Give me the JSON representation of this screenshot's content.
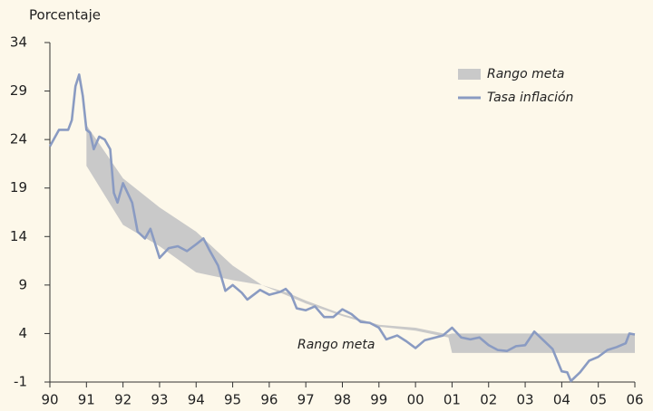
{
  "chart_data": {
    "type": "line",
    "y_label": "Porcentaje",
    "annotation": "Rango meta",
    "xlim": [
      1990,
      2006
    ],
    "xticks": [
      {
        "value": 1990,
        "label": "90"
      },
      {
        "value": 1991,
        "label": "91"
      },
      {
        "value": 1992,
        "label": "92"
      },
      {
        "value": 1993,
        "label": "93"
      },
      {
        "value": 1994,
        "label": "94"
      },
      {
        "value": 1995,
        "label": "95"
      },
      {
        "value": 1996,
        "label": "96"
      },
      {
        "value": 1997,
        "label": "97"
      },
      {
        "value": 1998,
        "label": "98"
      },
      {
        "value": 1999,
        "label": "99"
      },
      {
        "value": 2000,
        "label": "00"
      },
      {
        "value": 2001,
        "label": "01"
      },
      {
        "value": 2002,
        "label": "02"
      },
      {
        "value": 2003,
        "label": "03"
      },
      {
        "value": 2004,
        "label": "04"
      },
      {
        "value": 2005,
        "label": "05"
      },
      {
        "value": 2006,
        "label": "06"
      }
    ],
    "ylim": [
      -1,
      34
    ],
    "yticks": [
      -1,
      4,
      9,
      14,
      19,
      24,
      29,
      34
    ],
    "legend": "top-right",
    "series": [
      {
        "name": "Rango meta",
        "kind": "band",
        "color": "#c9c9c9",
        "x": [
          1991.0,
          1992.0,
          1993.0,
          1994.0,
          1995.0,
          1995.8,
          1996.5,
          1997.0,
          1998.0,
          1999.0,
          2000.0,
          2000.9,
          2001.0,
          2006.0
        ],
        "values": [
          25.5,
          20,
          17,
          14.5,
          11,
          9,
          8.2,
          7.4,
          6.0,
          4.9,
          4.6,
          3.9,
          4,
          4
        ],
        "lower": [
          21.3,
          15.2,
          13,
          10.3,
          9.5,
          9,
          7.9,
          7.1,
          5.8,
          4.7,
          4.3,
          3.6,
          2,
          2
        ]
      },
      {
        "name": "Tasa inflación",
        "kind": "line",
        "color": "#8a9bc2",
        "x": [
          1990.0,
          1990.25,
          1990.5,
          1990.6,
          1990.7,
          1990.8,
          1990.9,
          1991.0,
          1991.1,
          1991.2,
          1991.35,
          1991.5,
          1991.65,
          1991.75,
          1991.85,
          1992.0,
          1992.25,
          1992.4,
          1992.6,
          1992.75,
          1993.0,
          1993.25,
          1993.5,
          1993.75,
          1994.0,
          1994.2,
          1994.35,
          1994.6,
          1994.8,
          1995.0,
          1995.25,
          1995.4,
          1995.75,
          1996.0,
          1996.3,
          1996.45,
          1996.6,
          1996.75,
          1997.0,
          1997.25,
          1997.5,
          1997.75,
          1998.0,
          1998.25,
          1998.5,
          1998.75,
          1999.0,
          1999.2,
          1999.5,
          1999.75,
          2000.0,
          2000.25,
          2000.75,
          2001.0,
          2001.25,
          2001.5,
          2001.75,
          2002.0,
          2002.25,
          2002.5,
          2002.75,
          2003.0,
          2003.25,
          2003.5,
          2003.75,
          2004.0,
          2004.15,
          2004.25,
          2004.5,
          2004.75,
          2005.0,
          2005.25,
          2005.5,
          2005.75,
          2005.85,
          2006.0
        ],
        "values": [
          23.3,
          25,
          25,
          26,
          29.5,
          30.7,
          28.5,
          25,
          24.7,
          23,
          24.3,
          24,
          23,
          18.5,
          17.5,
          19.5,
          17.5,
          14.5,
          13.8,
          14.8,
          11.8,
          12.8,
          13,
          12.5,
          13.2,
          13.8,
          12.7,
          11,
          8.4,
          9,
          8.2,
          7.5,
          8.5,
          8,
          8.3,
          8.6,
          8,
          6.6,
          6.4,
          6.8,
          5.7,
          5.7,
          6.5,
          6,
          5.2,
          5.1,
          4.6,
          3.4,
          3.8,
          3.2,
          2.5,
          3.3,
          3.8,
          4.6,
          3.6,
          3.4,
          3.6,
          2.8,
          2.3,
          2.2,
          2.7,
          2.8,
          4.2,
          3.3,
          2.4,
          0.1,
          0,
          -0.9,
          0,
          1.2,
          1.6,
          2.3,
          2.6,
          3.0,
          4.0,
          3.9
        ]
      }
    ]
  }
}
